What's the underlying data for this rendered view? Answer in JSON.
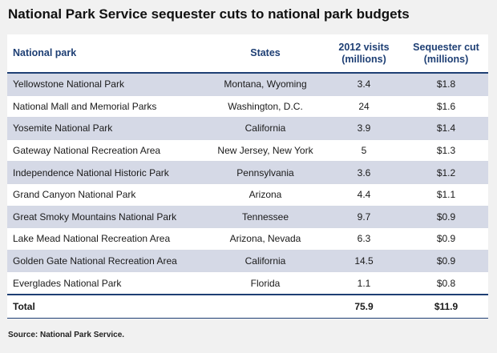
{
  "title": "National Park Service sequester cuts to national park budgets",
  "chart_data": {
    "type": "table",
    "columns": [
      {
        "label": "National park",
        "sublabel": ""
      },
      {
        "label": "States",
        "sublabel": ""
      },
      {
        "label": "2012 visits",
        "sublabel": "(millions)"
      },
      {
        "label": "Sequester cut",
        "sublabel": "(millions)"
      }
    ],
    "rows": [
      {
        "park": "Yellowstone National Park",
        "states": "Montana, Wyoming",
        "visits": "3.4",
        "cut": "$1.8"
      },
      {
        "park": "National Mall and Memorial Parks",
        "states": "Washington, D.C.",
        "visits": "24",
        "cut": "$1.6"
      },
      {
        "park": "Yosemite National Park",
        "states": "California",
        "visits": "3.9",
        "cut": "$1.4"
      },
      {
        "park": "Gateway National Recreation Area",
        "states": "New Jersey, New York",
        "visits": "5",
        "cut": "$1.3"
      },
      {
        "park": "Independence National Historic Park",
        "states": "Pennsylvania",
        "visits": "3.6",
        "cut": "$1.2"
      },
      {
        "park": "Grand Canyon National Park",
        "states": "Arizona",
        "visits": "4.4",
        "cut": "$1.1"
      },
      {
        "park": "Great Smoky Mountains National Park",
        "states": "Tennessee",
        "visits": "9.7",
        "cut": "$0.9"
      },
      {
        "park": "Lake Mead National Recreation Area",
        "states": "Arizona, Nevada",
        "visits": "6.3",
        "cut": "$0.9"
      },
      {
        "park": "Golden Gate National Recreation Area",
        "states": "California",
        "visits": "14.5",
        "cut": "$0.9"
      },
      {
        "park": "Everglades National Park",
        "states": "Florida",
        "visits": "1.1",
        "cut": "$0.8"
      }
    ],
    "total": {
      "label": "Total",
      "visits": "75.9",
      "cut": "$11.9"
    }
  },
  "source": "Source: National Park Service.",
  "colors": {
    "header_text": "#1e3f74",
    "row_shade": "#d5d9e6",
    "background": "#f1f1f1"
  }
}
